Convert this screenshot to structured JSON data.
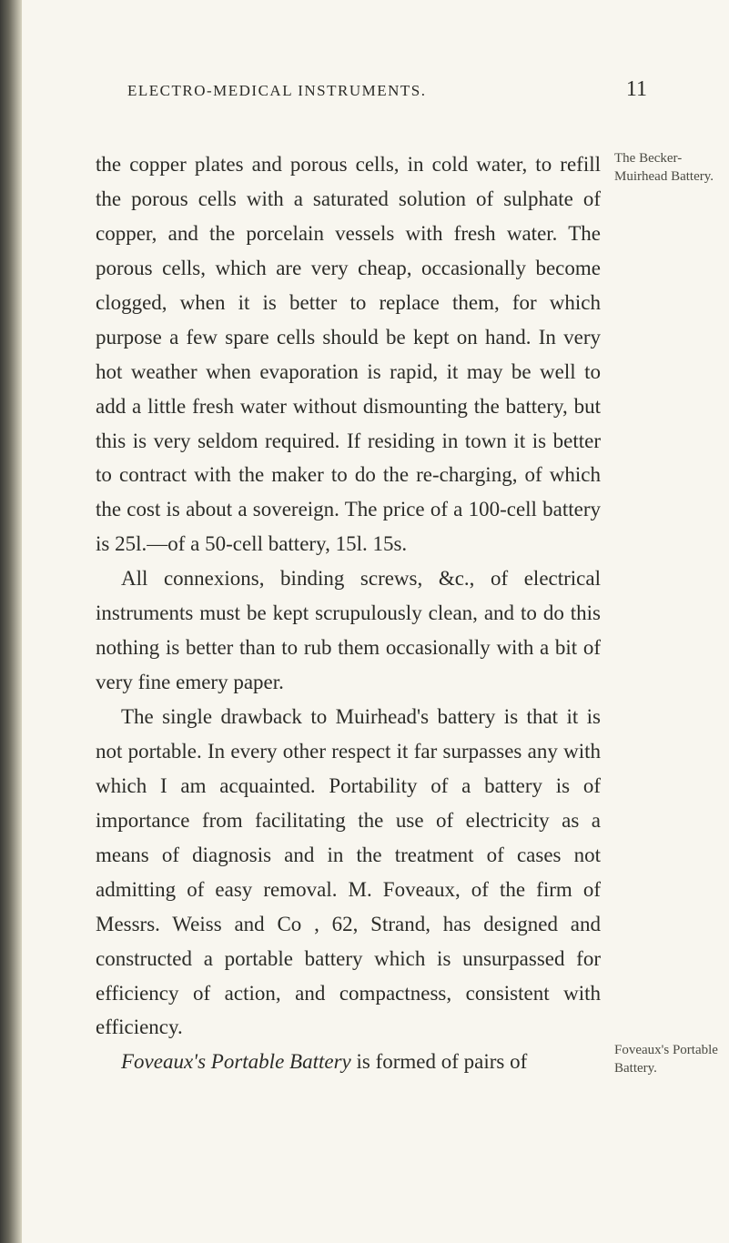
{
  "header": {
    "running_title": "ELECTRO-MEDICAL INSTRUMENTS.",
    "page_number": "11"
  },
  "paragraphs": {
    "p1": "the copper plates and porous cells, in cold water, to refill the porous cells with a saturated solution of sulphate of copper, and the porcelain vessels with fresh water. The porous cells, which are very cheap, occasionally become clogged, when it is better to replace them, for which purpose a few spare cells should be kept on hand. In very hot weather when evaporation is rapid, it may be well to add a little fresh water without dismounting the battery, but this is very seldom required. If residing in town it is better to contract with the maker to do the re-charging, of which the cost is about a sovereign. The price of a 100-cell battery is 25l.—of a 50-cell battery, 15l. 15s.",
    "p2": "All connexions, binding screws, &c., of electrical instruments must be kept scrupulously clean, and to do this nothing is better than to rub them occasionally with a bit of very fine emery paper.",
    "p3": "The single drawback to Muirhead's battery is that it is not portable. In every other respect it far surpasses any with which I am acquainted. Portability of a battery is of importance from facilitating the use of electricity as a means of diagnosis and in the treatment of cases not admitting of easy removal. M. Foveaux, of the firm of Messrs. Weiss and Co , 62, Strand, has designed and constructed a portable battery which is unsurpassed for efficiency of action, and compactness, consistent with efficiency.",
    "p4_italic": "Foveaux's Portable Battery",
    "p4_rest": " is formed of pairs of"
  },
  "margin_notes": {
    "note1": "The Becker-Muirhead Battery.",
    "note2": "Foveaux's Portable Battery."
  },
  "colors": {
    "page_bg": "#f8f6ef",
    "text": "#2c2c28",
    "margin_text": "#4a4a42"
  }
}
